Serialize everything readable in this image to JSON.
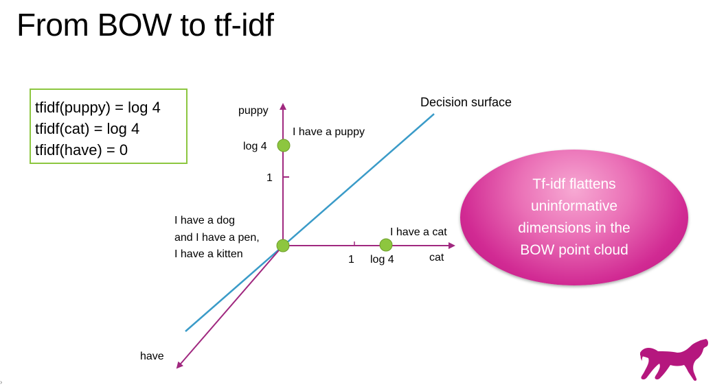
{
  "title": "From BOW to tf-idf",
  "formulas": [
    "tfidf(puppy) = log 4",
    "tfidf(cat) = log 4",
    "tfidf(have) = 0"
  ],
  "axes": {
    "vertical_label": "puppy",
    "horizontal_label": "cat",
    "diagonal_label": "have",
    "vertical_ticks": [
      "log 4",
      "1"
    ],
    "horizontal_ticks": [
      "1",
      "log 4"
    ]
  },
  "points": {
    "puppy": "I have a puppy",
    "cat": "I have a cat",
    "origin_lines": [
      "I have a dog",
      "and I have a pen,",
      "I have a kitten"
    ]
  },
  "decision_surface_label": "Decision surface",
  "callout_lines": [
    "Tf-idf flattens",
    "uninformative",
    "dimensions in the",
    "BOW point cloud"
  ],
  "colors": {
    "axis": "#a0287f",
    "decision_surface": "#3a9bc8",
    "point": "#8dc63f",
    "formula_border": "#8cc63f",
    "callout": "#d12a93",
    "logo": "#b5177e"
  },
  "logo_icon": "dog-logo-icon",
  "edge_glyph": "›"
}
